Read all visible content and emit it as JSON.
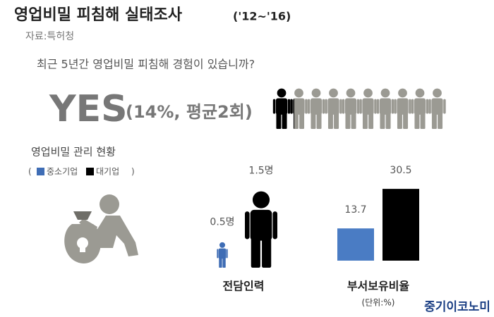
{
  "header": {
    "title": "영업비밀 피침해 실태조사",
    "period": "('12~'16)",
    "source": "자료:특허청"
  },
  "survey": {
    "question": "최근 5년간 영업비밀 피침해 경험이 있습니까?",
    "answer": "YES",
    "detail": "(14%, 평균2회)"
  },
  "section_title": "영업비밀 관리 현황",
  "legend": {
    "open": "(",
    "close": ")"
  },
  "chart_data": [
    {
      "type": "person",
      "x_label": "전담인력",
      "series": [
        {
          "name": "중소기업",
          "color": "#3f6db5",
          "values": [
            0.5
          ],
          "value_labels": [
            "0.5명"
          ]
        },
        {
          "name": "대기업",
          "color": "#000000",
          "values": [
            1.5
          ],
          "value_labels": [
            "1.5명"
          ]
        }
      ]
    },
    {
      "type": "bar",
      "x_label": "부서보유비율",
      "unit": "(단위:%)",
      "series": [
        {
          "color": "#4a7cc4",
          "values": [
            13.7
          ]
        },
        {
          "color": "#000000",
          "values": [
            30.5
          ]
        }
      ]
    }
  ],
  "brand": "중기이코노미"
}
